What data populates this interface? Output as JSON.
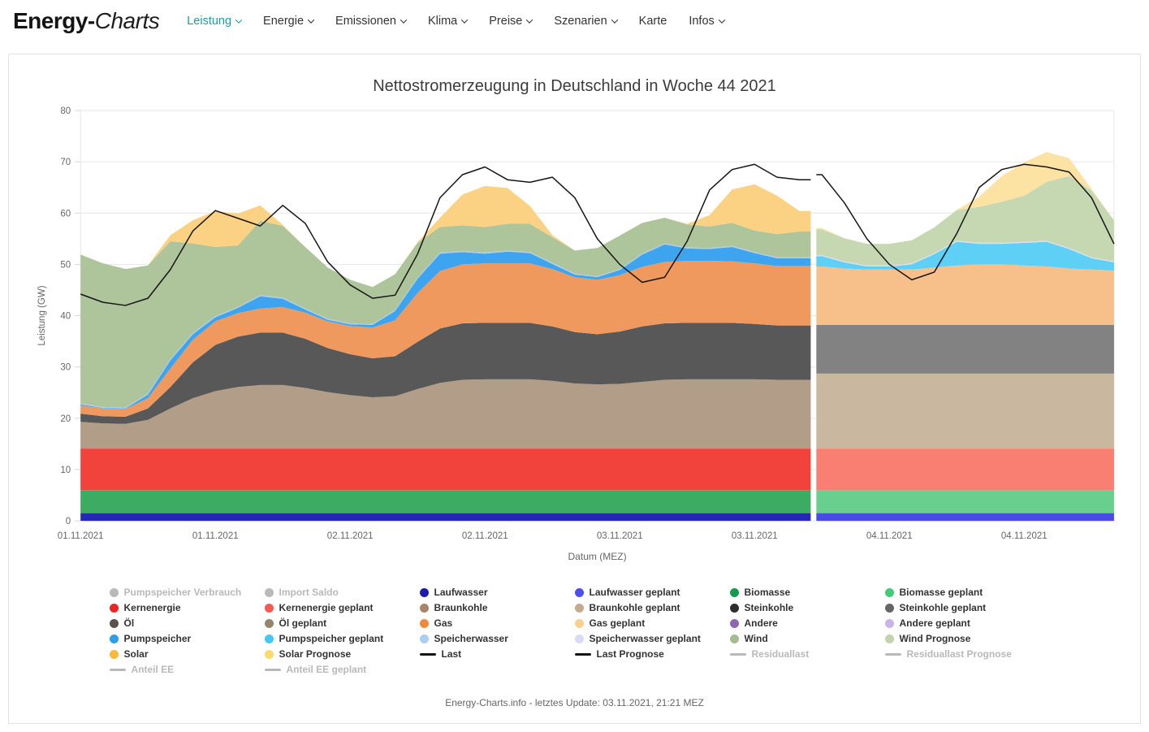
{
  "header": {
    "logo_primary": "Energy-",
    "logo_secondary": "Charts",
    "accent_color": "#16a1a1",
    "nav": [
      {
        "label": "Leistung",
        "active": true,
        "dropdown": true
      },
      {
        "label": "Energie",
        "active": false,
        "dropdown": true
      },
      {
        "label": "Emissionen",
        "active": false,
        "dropdown": true
      },
      {
        "label": "Klima",
        "active": false,
        "dropdown": true
      },
      {
        "label": "Preise",
        "active": false,
        "dropdown": true
      },
      {
        "label": "Szenarien",
        "active": false,
        "dropdown": true
      },
      {
        "label": "Karte",
        "active": false,
        "dropdown": false
      },
      {
        "label": "Infos",
        "active": false,
        "dropdown": true
      }
    ]
  },
  "chart_data": {
    "type": "area",
    "stacked": true,
    "title": "Nettostromerzeugung in Deutschland in Woche 44 2021",
    "xlabel": "Datum (MEZ)",
    "ylabel": "Leistung (GW)",
    "ylim": [
      0,
      80
    ],
    "yticks": [
      0,
      10,
      20,
      30,
      40,
      50,
      60,
      70,
      80
    ],
    "grid": true,
    "legend_position": "bottom",
    "x_unit": "hours since 01.11.2021 00:00 MEZ",
    "x_max": 92,
    "x_hours": [
      0,
      2,
      4,
      6,
      8,
      10,
      12,
      14,
      16,
      18,
      20,
      22,
      24,
      26,
      28,
      30,
      32,
      34,
      36,
      38,
      40,
      42,
      44,
      46,
      48,
      50,
      52,
      54,
      56,
      58,
      60,
      62,
      64,
      66,
      68,
      70,
      72,
      74,
      76,
      78,
      80,
      82,
      84,
      86,
      88,
      90,
      92
    ],
    "x_tick_hours": [
      0,
      12,
      24,
      36,
      48,
      60,
      72,
      84
    ],
    "x_tick_labels": [
      "01.11.2021",
      "01.11.2021",
      "02.11.2021",
      "02.11.2021",
      "03.11.2021",
      "03.11.2021",
      "04.11.2021",
      "04.11.2021"
    ],
    "forecast_boundary_hour": 65,
    "forecast_split_index": 33,
    "series": [
      {
        "name": "Laufwasser",
        "forecast_name": "Laufwasser geplant",
        "type": "area",
        "color": "#2727b5",
        "forecast_color": "#4a4ae8",
        "values": [
          1.5,
          1.5,
          1.5,
          1.5,
          1.5,
          1.5,
          1.5,
          1.5,
          1.5,
          1.5,
          1.5,
          1.5,
          1.5,
          1.5,
          1.5,
          1.5,
          1.5,
          1.5,
          1.5,
          1.5,
          1.5,
          1.5,
          1.5,
          1.5,
          1.5,
          1.5,
          1.5,
          1.5,
          1.5,
          1.5,
          1.5,
          1.5,
          1.5,
          1.5,
          1.5,
          1.5,
          1.5,
          1.5,
          1.5,
          1.5,
          1.5,
          1.5,
          1.5,
          1.5,
          1.5,
          1.5,
          1.5
        ]
      },
      {
        "name": "Biomasse",
        "forecast_name": "Biomasse geplant",
        "type": "area",
        "color": "#3dac63",
        "forecast_color": "#68cf8e",
        "values": [
          4.5,
          4.5,
          4.5,
          4.5,
          4.5,
          4.5,
          4.5,
          4.5,
          4.5,
          4.5,
          4.5,
          4.5,
          4.5,
          4.5,
          4.5,
          4.5,
          4.5,
          4.5,
          4.5,
          4.5,
          4.5,
          4.5,
          4.5,
          4.5,
          4.5,
          4.5,
          4.5,
          4.5,
          4.5,
          4.5,
          4.5,
          4.5,
          4.5,
          4.5,
          4.5,
          4.5,
          4.5,
          4.5,
          4.5,
          4.5,
          4.5,
          4.5,
          4.5,
          4.5,
          4.5,
          4.5,
          4.5
        ]
      },
      {
        "name": "Kernenergie",
        "forecast_name": "Kernenergie geplant",
        "type": "area",
        "color": "#f2423c",
        "forecast_color": "#f97f72",
        "values": [
          8.1,
          8.1,
          8.1,
          8.1,
          8.1,
          8.1,
          8.1,
          8.1,
          8.1,
          8.1,
          8.1,
          8.1,
          8.1,
          8.1,
          8.1,
          8.1,
          8.1,
          8.1,
          8.1,
          8.1,
          8.1,
          8.1,
          8.1,
          8.1,
          8.1,
          8.1,
          8.1,
          8.1,
          8.1,
          8.1,
          8.1,
          8.1,
          8.1,
          8.1,
          8.1,
          8.1,
          8.1,
          8.1,
          8.1,
          8.1,
          8.1,
          8.1,
          8.1,
          8.1,
          8.1,
          8.1,
          8.1
        ]
      },
      {
        "name": "Braunkohle",
        "forecast_name": "Braunkohle geplant",
        "type": "area",
        "color": "#b29d88",
        "forecast_color": "#c9b79f",
        "values": [
          5.2,
          4.9,
          4.8,
          5.6,
          7.8,
          9.8,
          11.2,
          12.0,
          12.4,
          12.4,
          11.8,
          11.0,
          10.4,
          10.0,
          10.2,
          11.6,
          12.8,
          13.4,
          13.5,
          13.5,
          13.5,
          13.2,
          12.7,
          12.5,
          12.6,
          13.0,
          13.4,
          13.5,
          13.5,
          13.5,
          13.5,
          13.4,
          13.4,
          14.6,
          14.6,
          14.6,
          14.6,
          14.6,
          14.6,
          14.6,
          14.6,
          14.6,
          14.6,
          14.6,
          14.6,
          14.6,
          14.6
        ]
      },
      {
        "name": "Steinkohle",
        "forecast_name": "Steinkohle geplant",
        "type": "area",
        "color": "#585858",
        "forecast_color": "#828282",
        "values": [
          1.6,
          1.4,
          1.4,
          2.2,
          4.2,
          7.0,
          9.0,
          9.8,
          10.2,
          10.2,
          9.6,
          8.6,
          8.0,
          7.6,
          7.8,
          9.2,
          10.6,
          11.0,
          11.0,
          11.0,
          11.0,
          10.6,
          10.0,
          9.8,
          10.2,
          10.8,
          11.0,
          11.0,
          11.0,
          11.0,
          10.8,
          10.6,
          10.6,
          9.5,
          9.5,
          9.5,
          9.5,
          9.5,
          9.5,
          9.5,
          9.5,
          9.5,
          9.5,
          9.5,
          9.5,
          9.5,
          9.5
        ]
      },
      {
        "name": "Gas",
        "forecast_name": "Gas geplant",
        "type": "area",
        "color": "#f0995f",
        "forecast_color": "#f7c08b",
        "values": [
          1.6,
          1.5,
          1.5,
          2.0,
          3.6,
          4.4,
          4.6,
          4.6,
          4.7,
          5.0,
          5.1,
          5.2,
          5.5,
          6.0,
          7.0,
          9.5,
          11.2,
          11.5,
          11.6,
          11.6,
          11.6,
          11.2,
          10.7,
          10.6,
          11.0,
          11.6,
          12.0,
          12.1,
          12.1,
          12.0,
          11.8,
          11.6,
          11.6,
          11.4,
          11.0,
          10.8,
          10.8,
          10.8,
          11.2,
          11.6,
          11.8,
          11.8,
          11.6,
          11.4,
          11.0,
          10.8,
          10.6
        ]
      },
      {
        "name": "Pumpspeicher",
        "forecast_name": "Pumpspeicher geplant",
        "type": "area",
        "color": "#3ea4ef",
        "forecast_color": "#5ed0f6",
        "values": [
          0.2,
          0.1,
          0.1,
          0.7,
          1.6,
          1.1,
          0.8,
          1.0,
          2.4,
          1.6,
          0.6,
          0.3,
          0.3,
          0.5,
          1.8,
          2.8,
          3.4,
          2.4,
          1.9,
          2.3,
          2.0,
          1.0,
          0.5,
          0.5,
          1.0,
          2.4,
          3.4,
          2.4,
          2.3,
          2.8,
          2.0,
          1.5,
          1.5,
          2.0,
          1.2,
          0.6,
          0.6,
          1.0,
          2.6,
          4.6,
          4.0,
          4.0,
          4.4,
          4.8,
          3.8,
          2.2,
          1.6
        ]
      },
      {
        "name": "Speicherwasser",
        "forecast_name": "Speicherwasser geplant",
        "type": "area",
        "color": "#a9cdf2",
        "forecast_color": "#dadef8",
        "values": [
          0.2,
          0.2,
          0.2,
          0.2,
          0.2,
          0.2,
          0.2,
          0.2,
          0.2,
          0.2,
          0.2,
          0.2,
          0.2,
          0.2,
          0.2,
          0.2,
          0.2,
          0.2,
          0.2,
          0.2,
          0.2,
          0.2,
          0.2,
          0.2,
          0.2,
          0.2,
          0.2,
          0.2,
          0.2,
          0.2,
          0.2,
          0.2,
          0.2,
          0.2,
          0.2,
          0.2,
          0.2,
          0.2,
          0.2,
          0.2,
          0.2,
          0.2,
          0.2,
          0.2,
          0.2,
          0.2,
          0.2
        ]
      },
      {
        "name": "Wind",
        "forecast_name": "Wind Prognose",
        "type": "area",
        "color": "#aec59b",
        "forecast_color": "#c6d8b2",
        "values": [
          29.0,
          28.0,
          27.0,
          25.0,
          23.0,
          17.5,
          13.5,
          12.0,
          14.5,
          14.0,
          12.0,
          10.0,
          8.5,
          7.2,
          7.0,
          6.8,
          5.0,
          5.0,
          5.0,
          5.2,
          5.5,
          5.0,
          4.5,
          5.5,
          6.5,
          6.0,
          5.0,
          4.5,
          4.2,
          4.5,
          4.2,
          4.5,
          5.0,
          5.0,
          4.5,
          4.2,
          4.2,
          4.5,
          5.0,
          6.0,
          7.0,
          8.0,
          9.0,
          11.5,
          14.0,
          13.0,
          8.0
        ]
      },
      {
        "name": "Solar",
        "forecast_name": "Solar Prognose",
        "type": "area",
        "color": "#fbd283",
        "forecast_color": "#fce3a4",
        "values": [
          0,
          0,
          0,
          0,
          1.2,
          4.5,
          7.0,
          6.2,
          3.0,
          0.2,
          0,
          0,
          0,
          0,
          0,
          0.1,
          1.8,
          6.0,
          8.0,
          7.0,
          3.5,
          0.4,
          0,
          0,
          0,
          0,
          0,
          0.1,
          2.2,
          6.5,
          9.0,
          7.5,
          4.0,
          0.3,
          0,
          0,
          0,
          0,
          0,
          0,
          2.0,
          5.0,
          6.5,
          5.8,
          3.5,
          0.3,
          0
        ]
      },
      {
        "name": "Last",
        "forecast_name": "Last Prognose",
        "type": "line",
        "color": "#151515",
        "forecast_color": "#151515",
        "values": [
          44.2,
          42.6,
          42.0,
          43.4,
          49.0,
          56.5,
          60.5,
          59.0,
          57.5,
          61.5,
          58.0,
          50.5,
          46.0,
          43.4,
          44.0,
          52.0,
          63.0,
          67.5,
          69.0,
          66.5,
          66.0,
          67.0,
          63.0,
          55.0,
          50.0,
          46.5,
          47.5,
          54.5,
          64.5,
          68.5,
          69.5,
          67.0,
          66.5,
          67.5,
          62.0,
          55.0,
          50.0,
          47.0,
          48.5,
          56.0,
          65.0,
          68.5,
          69.5,
          69.0,
          68.0,
          63.0,
          54.0
        ]
      }
    ]
  },
  "legend": {
    "items": [
      {
        "label": "Pumpspeicher Verbrauch",
        "symbol": "circle",
        "color": "#b9b9b9",
        "enabled": false
      },
      {
        "label": "Import Saldo",
        "symbol": "circle",
        "color": "#b9b9b9",
        "enabled": false
      },
      {
        "label": "Laufwasser",
        "symbol": "circle",
        "color": "#1c1cb0",
        "enabled": true
      },
      {
        "label": "Laufwasser geplant",
        "symbol": "circle",
        "color": "#4d4df0",
        "enabled": true
      },
      {
        "label": "Biomasse",
        "symbol": "circle",
        "color": "#169a50",
        "enabled": true
      },
      {
        "label": "Biomasse geplant",
        "symbol": "circle",
        "color": "#45c97d",
        "enabled": true
      },
      {
        "label": "Kernenergie",
        "symbol": "circle",
        "color": "#ee2424",
        "enabled": true
      },
      {
        "label": "Kernenergie geplant",
        "symbol": "circle",
        "color": "#f25b52",
        "enabled": true
      },
      {
        "label": "Braunkohle",
        "symbol": "circle",
        "color": "#a8856a",
        "enabled": true
      },
      {
        "label": "Braunkohle geplant",
        "symbol": "circle",
        "color": "#c4ab8e",
        "enabled": true
      },
      {
        "label": "Steinkohle",
        "symbol": "circle",
        "color": "#2e2e2e",
        "enabled": true
      },
      {
        "label": "Steinkohle geplant",
        "symbol": "circle",
        "color": "#666666",
        "enabled": true
      },
      {
        "label": "Öl",
        "symbol": "circle",
        "color": "#5c5247",
        "enabled": true
      },
      {
        "label": "Öl geplant",
        "symbol": "circle",
        "color": "#96836c",
        "enabled": true
      },
      {
        "label": "Gas",
        "symbol": "circle",
        "color": "#ef8a3c",
        "enabled": true
      },
      {
        "label": "Gas geplant",
        "symbol": "circle",
        "color": "#f9cf92",
        "enabled": true
      },
      {
        "label": "Andere",
        "symbol": "circle",
        "color": "#8d68ae",
        "enabled": true
      },
      {
        "label": "Andere geplant",
        "symbol": "circle",
        "color": "#c7b5e6",
        "enabled": true
      },
      {
        "label": "Pumpspeicher",
        "symbol": "circle",
        "color": "#2b9fe8",
        "enabled": true
      },
      {
        "label": "Pumpspeicher geplant",
        "symbol": "circle",
        "color": "#45c8f2",
        "enabled": true
      },
      {
        "label": "Speicherwasser",
        "symbol": "circle",
        "color": "#abcdf0",
        "enabled": true
      },
      {
        "label": "Speicherwasser geplant",
        "symbol": "circle",
        "color": "#d9dbf8",
        "enabled": true
      },
      {
        "label": "Wind",
        "symbol": "circle",
        "color": "#a4bd90",
        "enabled": true
      },
      {
        "label": "Wind Prognose",
        "symbol": "circle",
        "color": "#c2d4ab",
        "enabled": true
      },
      {
        "label": "Solar",
        "symbol": "circle",
        "color": "#fcb73e",
        "enabled": true
      },
      {
        "label": "Solar Prognose",
        "symbol": "circle",
        "color": "#fcd96e",
        "enabled": true
      },
      {
        "label": "Last",
        "symbol": "line",
        "color": "#151515",
        "enabled": true
      },
      {
        "label": "Last Prognose",
        "symbol": "line",
        "color": "#151515",
        "enabled": true
      },
      {
        "label": "Residuallast",
        "symbol": "line",
        "color": "#b9b9b9",
        "enabled": false
      },
      {
        "label": "Residuallast Prognose",
        "symbol": "line",
        "color": "#b9b9b9",
        "enabled": false
      },
      {
        "label": "Anteil EE",
        "symbol": "line",
        "color": "#b9b9b9",
        "enabled": false
      },
      {
        "label": "Anteil EE geplant",
        "symbol": "line",
        "color": "#b9b9b9",
        "enabled": false
      }
    ]
  },
  "footer": {
    "text": "Energy-Charts.info - letztes Update: 03.11.2021, 21:21 MEZ"
  }
}
